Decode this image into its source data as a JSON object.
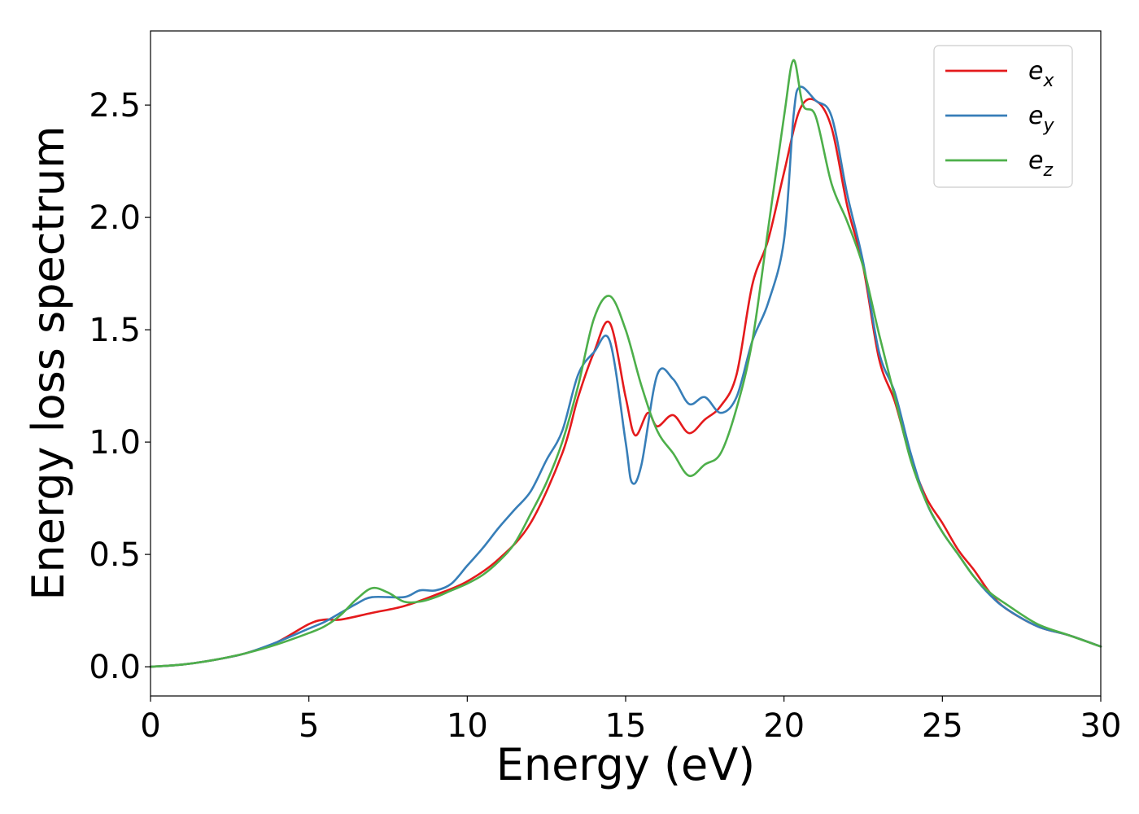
{
  "chart_data": {
    "type": "line",
    "xlabel": "Energy (eV)",
    "ylabel": "Energy loss spectrum",
    "xlim": [
      0,
      30
    ],
    "ylim": [
      -0.13,
      2.83
    ],
    "xticks": [
      0,
      5,
      10,
      15,
      20,
      25,
      30
    ],
    "xtick_labels": [
      "0",
      "5",
      "10",
      "15",
      "20",
      "25",
      "30"
    ],
    "yticks": [
      0.0,
      0.5,
      1.0,
      1.5,
      2.0,
      2.5
    ],
    "ytick_labels": [
      "0.0",
      "0.5",
      "1.0",
      "1.5",
      "2.0",
      "2.5"
    ],
    "grid": false,
    "legend_position": "top-right",
    "series": [
      {
        "name": "e",
        "subscript": "x",
        "color": "#e41a1c",
        "x": [
          0,
          1,
          2,
          3,
          4,
          5,
          5.5,
          6,
          7,
          8,
          9,
          10,
          11,
          12,
          13,
          13.5,
          14,
          14.5,
          15,
          15.3,
          15.7,
          16,
          16.5,
          17,
          17.5,
          18,
          18.5,
          19,
          19.5,
          20,
          20.5,
          21,
          21.5,
          22,
          22.5,
          23,
          23.5,
          24,
          24.5,
          25,
          25.5,
          26,
          26.5,
          27,
          28,
          29,
          30
        ],
        "y": [
          0,
          0.01,
          0.03,
          0.06,
          0.11,
          0.19,
          0.21,
          0.21,
          0.24,
          0.27,
          0.32,
          0.38,
          0.48,
          0.64,
          0.95,
          1.2,
          1.4,
          1.53,
          1.2,
          1.03,
          1.13,
          1.07,
          1.12,
          1.04,
          1.1,
          1.16,
          1.3,
          1.7,
          1.9,
          2.2,
          2.48,
          2.52,
          2.4,
          2.05,
          1.78,
          1.37,
          1.18,
          0.93,
          0.75,
          0.64,
          0.52,
          0.43,
          0.33,
          0.26,
          0.18,
          0.14,
          0.09
        ]
      },
      {
        "name": "e",
        "subscript": "y",
        "color": "#377eb8",
        "x": [
          0,
          1,
          2,
          3,
          4,
          5,
          5.5,
          6,
          6.5,
          7,
          8,
          8.5,
          9,
          9.5,
          10,
          10.5,
          11,
          11.5,
          12,
          12.5,
          13,
          13.5,
          14,
          14.5,
          15,
          15.2,
          15.5,
          16,
          16.5,
          17,
          17.5,
          18,
          18.5,
          19,
          19.5,
          20,
          20.3,
          20.5,
          21,
          21.5,
          22,
          22.5,
          23,
          23.5,
          24,
          24.5,
          25,
          25.5,
          26,
          26.5,
          27,
          28,
          29,
          30
        ],
        "y": [
          0,
          0.01,
          0.03,
          0.06,
          0.11,
          0.17,
          0.2,
          0.24,
          0.28,
          0.31,
          0.31,
          0.34,
          0.34,
          0.37,
          0.45,
          0.53,
          0.62,
          0.7,
          0.78,
          0.92,
          1.05,
          1.3,
          1.4,
          1.45,
          1.0,
          0.82,
          0.9,
          1.3,
          1.28,
          1.17,
          1.2,
          1.13,
          1.2,
          1.45,
          1.62,
          1.9,
          2.45,
          2.58,
          2.52,
          2.45,
          2.1,
          1.8,
          1.4,
          1.22,
          0.95,
          0.73,
          0.6,
          0.5,
          0.4,
          0.32,
          0.26,
          0.18,
          0.14,
          0.09
        ]
      },
      {
        "name": "e",
        "subscript": "z",
        "color": "#4daf4a",
        "x": [
          0,
          1,
          2,
          3,
          4,
          5,
          5.5,
          6,
          6.5,
          7,
          7.5,
          8,
          8.5,
          9,
          9.5,
          10,
          10.5,
          11,
          11.5,
          12,
          12.5,
          13,
          13.5,
          14,
          14.5,
          15,
          15.5,
          16,
          16.5,
          17,
          17.5,
          18,
          18.5,
          19,
          19.5,
          20,
          20.3,
          20.6,
          21,
          21.5,
          22,
          22.5,
          23,
          23.5,
          24,
          24.5,
          25,
          25.5,
          26,
          26.5,
          27,
          28,
          29,
          30
        ],
        "y": [
          0,
          0.01,
          0.03,
          0.06,
          0.1,
          0.15,
          0.18,
          0.23,
          0.3,
          0.35,
          0.33,
          0.29,
          0.29,
          0.31,
          0.34,
          0.37,
          0.41,
          0.47,
          0.55,
          0.68,
          0.82,
          1.0,
          1.25,
          1.55,
          1.65,
          1.5,
          1.25,
          1.05,
          0.95,
          0.85,
          0.9,
          0.95,
          1.15,
          1.45,
          1.95,
          2.45,
          2.7,
          2.5,
          2.45,
          2.15,
          1.98,
          1.78,
          1.48,
          1.2,
          0.92,
          0.73,
          0.6,
          0.5,
          0.4,
          0.33,
          0.28,
          0.19,
          0.14,
          0.09
        ]
      }
    ]
  }
}
